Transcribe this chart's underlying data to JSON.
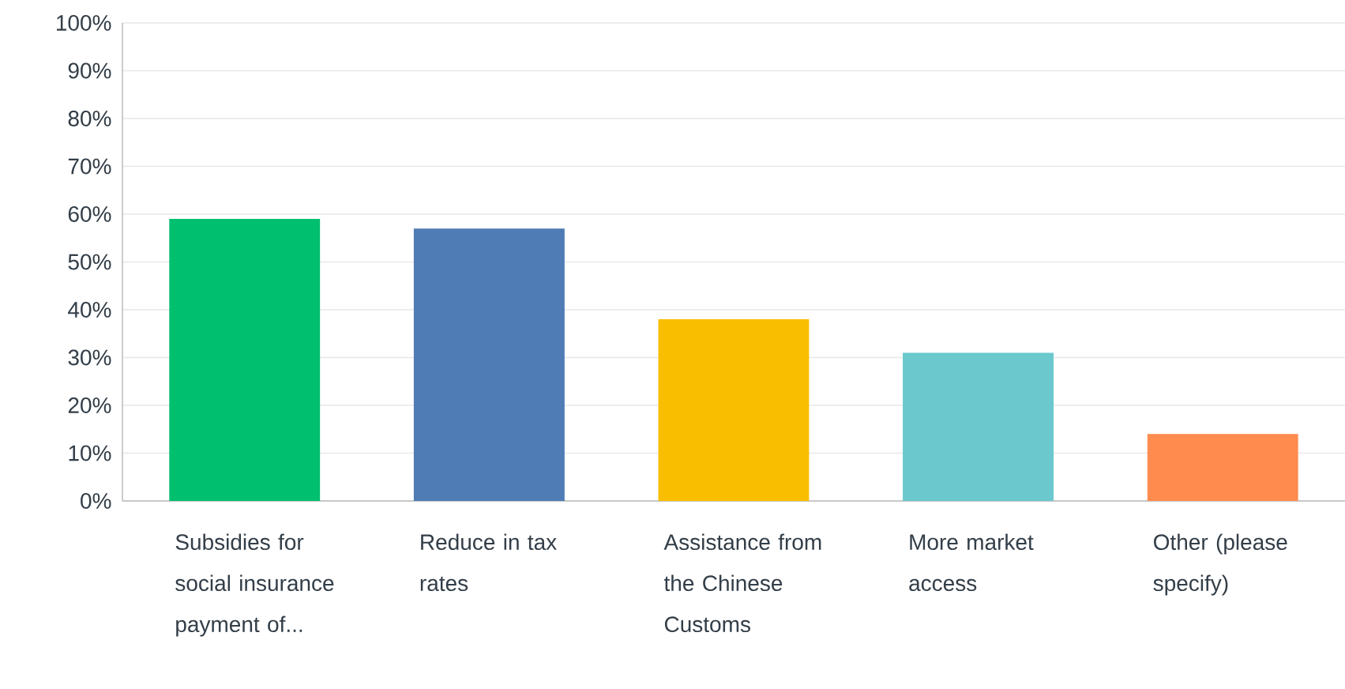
{
  "chart_data": {
    "type": "bar",
    "categories": [
      "Subsidies for social insurance payment of...",
      "Reduce in tax rates",
      "Assistance from the Chinese Customs",
      "More market access",
      "Other (please specify)"
    ],
    "values": [
      59,
      57,
      38,
      31,
      14
    ],
    "colors": [
      "#00bf6f",
      "#507cb6",
      "#f9be00",
      "#6bc8cd",
      "#ff8b4f"
    ],
    "ylim": [
      0,
      100
    ],
    "yticks": [
      {
        "value": 0,
        "label": "0%"
      },
      {
        "value": 10,
        "label": "10%"
      },
      {
        "value": 20,
        "label": "20%"
      },
      {
        "value": 30,
        "label": "30%"
      },
      {
        "value": 40,
        "label": "40%"
      },
      {
        "value": 50,
        "label": "50%"
      },
      {
        "value": 60,
        "label": "60%"
      },
      {
        "value": 70,
        "label": "70%"
      },
      {
        "value": 80,
        "label": "80%"
      },
      {
        "value": 90,
        "label": "90%"
      },
      {
        "value": 100,
        "label": "100%"
      }
    ],
    "grid": "y"
  }
}
